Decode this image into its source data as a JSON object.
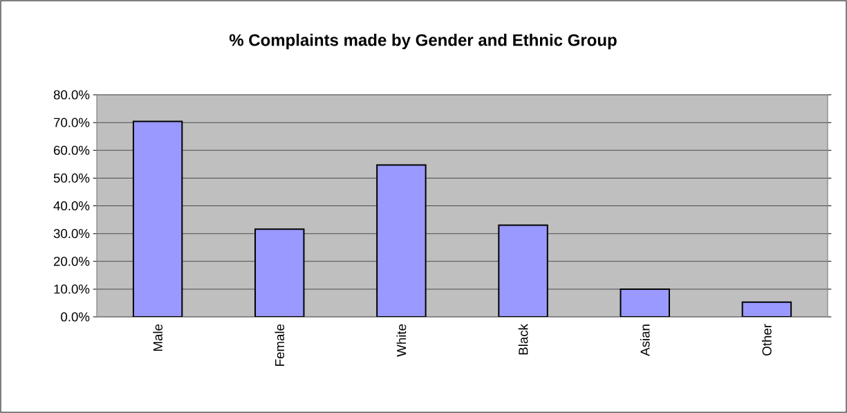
{
  "chart_data": {
    "type": "bar",
    "title": "% Complaints made by Gender and Ethnic Group",
    "categories": [
      "Male",
      "Female",
      "White",
      "Black",
      "Asian",
      "Other"
    ],
    "values": [
      70.4,
      31.6,
      54.7,
      33.0,
      10.0,
      5.3
    ],
    "color": "#9999ff",
    "ylim": [
      0,
      80
    ],
    "yticks": [
      {
        "value": 0,
        "label": "0.0%"
      },
      {
        "value": 10,
        "label": "10.0%"
      },
      {
        "value": 20,
        "label": "20.0%"
      },
      {
        "value": 30,
        "label": "30.0%"
      },
      {
        "value": 40,
        "label": "40.0%"
      },
      {
        "value": 50,
        "label": "50.0%"
      },
      {
        "value": 60,
        "label": "60.0%"
      },
      {
        "value": 70,
        "label": "70.0%"
      },
      {
        "value": 80,
        "label": "80.0%"
      }
    ],
    "grid": "y"
  }
}
